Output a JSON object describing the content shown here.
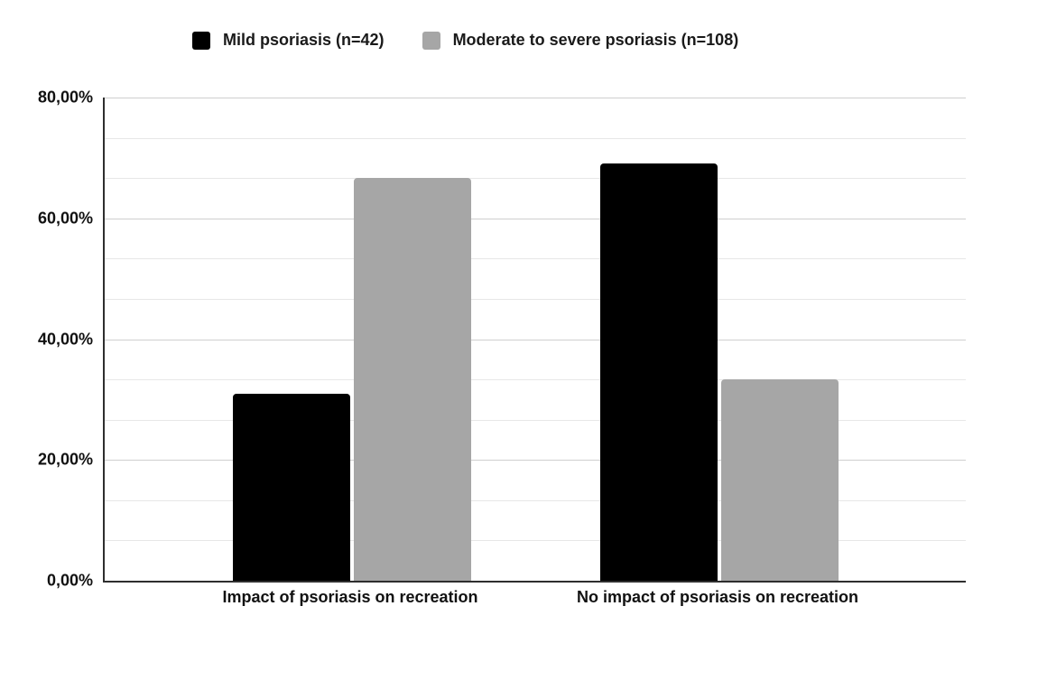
{
  "chart_data": {
    "type": "bar",
    "title": "",
    "xlabel": "",
    "ylabel": "",
    "categories": [
      "Impact of psoriasis on recreation",
      "No impact of psoriasis on recreation"
    ],
    "series": [
      {
        "name": "Mild psoriasis (n=42)",
        "color": "#000000",
        "values": [
          30.95,
          69.05
        ]
      },
      {
        "name": "Moderate to severe psoriasis (n=108)",
        "color": "#a6a6a6",
        "values": [
          66.67,
          33.33
        ]
      }
    ],
    "ylim": [
      0,
      80
    ],
    "yticks": [
      {
        "value": 0,
        "label": "0,00%"
      },
      {
        "value": 20,
        "label": "20,00%"
      },
      {
        "value": 40,
        "label": "40,00%"
      },
      {
        "value": 60,
        "label": "60,00%"
      },
      {
        "value": 80,
        "label": "80,00%"
      }
    ],
    "grid": {
      "divisions": 12,
      "major_every": 3,
      "visible": true
    },
    "legend_position": "top",
    "value_format": "percent-comma-decimal"
  }
}
